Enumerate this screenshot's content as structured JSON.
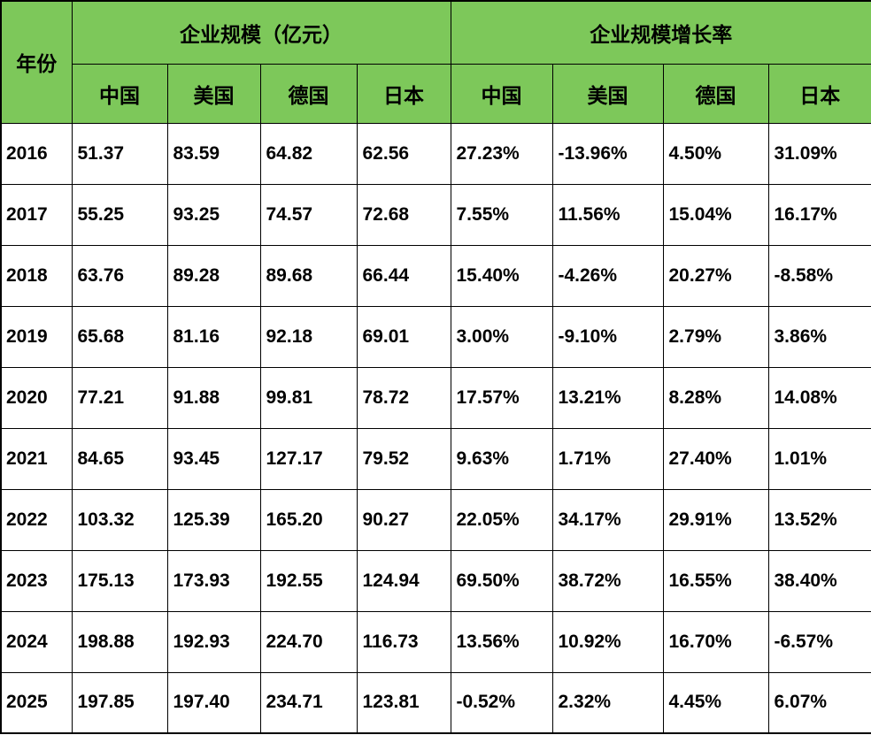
{
  "colors": {
    "header_bg": "#7DC85A",
    "border": "#000000",
    "text": "#000000"
  },
  "chart_data": {
    "type": "table",
    "row_header": "年份",
    "column_groups": [
      {
        "label": "企业规模（亿元）",
        "columns": [
          "中国",
          "美国",
          "德国",
          "日本"
        ]
      },
      {
        "label": "企业规模增长率",
        "columns": [
          "中国",
          "美国",
          "德国",
          "日本"
        ]
      }
    ],
    "years": [
      "2016",
      "2017",
      "2018",
      "2019",
      "2020",
      "2021",
      "2022",
      "2023",
      "2024",
      "2025"
    ],
    "scale_values": [
      [
        "51.37",
        "83.59",
        "64.82",
        "62.56"
      ],
      [
        "55.25",
        "93.25",
        "74.57",
        "72.68"
      ],
      [
        "63.76",
        "89.28",
        "89.68",
        "66.44"
      ],
      [
        "65.68",
        "81.16",
        "92.18",
        "69.01"
      ],
      [
        "77.21",
        "91.88",
        "99.81",
        "78.72"
      ],
      [
        "84.65",
        "93.45",
        "127.17",
        "79.52"
      ],
      [
        "103.32",
        "125.39",
        "165.20",
        "90.27"
      ],
      [
        "175.13",
        "173.93",
        "192.55",
        "124.94"
      ],
      [
        "198.88",
        "192.93",
        "224.70",
        "116.73"
      ],
      [
        "197.85",
        "197.40",
        "234.71",
        "123.81"
      ]
    ],
    "growth_values": [
      [
        "27.23%",
        "-13.96%",
        "4.50%",
        "31.09%"
      ],
      [
        "7.55%",
        "11.56%",
        "15.04%",
        "16.17%"
      ],
      [
        "15.40%",
        "-4.26%",
        "20.27%",
        "-8.58%"
      ],
      [
        "3.00%",
        "-9.10%",
        "2.79%",
        "3.86%"
      ],
      [
        "17.57%",
        "13.21%",
        "8.28%",
        "14.08%"
      ],
      [
        "9.63%",
        "1.71%",
        "27.40%",
        "1.01%"
      ],
      [
        "22.05%",
        "34.17%",
        "29.91%",
        "13.52%"
      ],
      [
        "69.50%",
        "38.72%",
        "16.55%",
        "38.40%"
      ],
      [
        "13.56%",
        "10.92%",
        "16.70%",
        "-6.57%"
      ],
      [
        "-0.52%",
        "2.32%",
        "4.45%",
        "6.07%"
      ]
    ]
  }
}
